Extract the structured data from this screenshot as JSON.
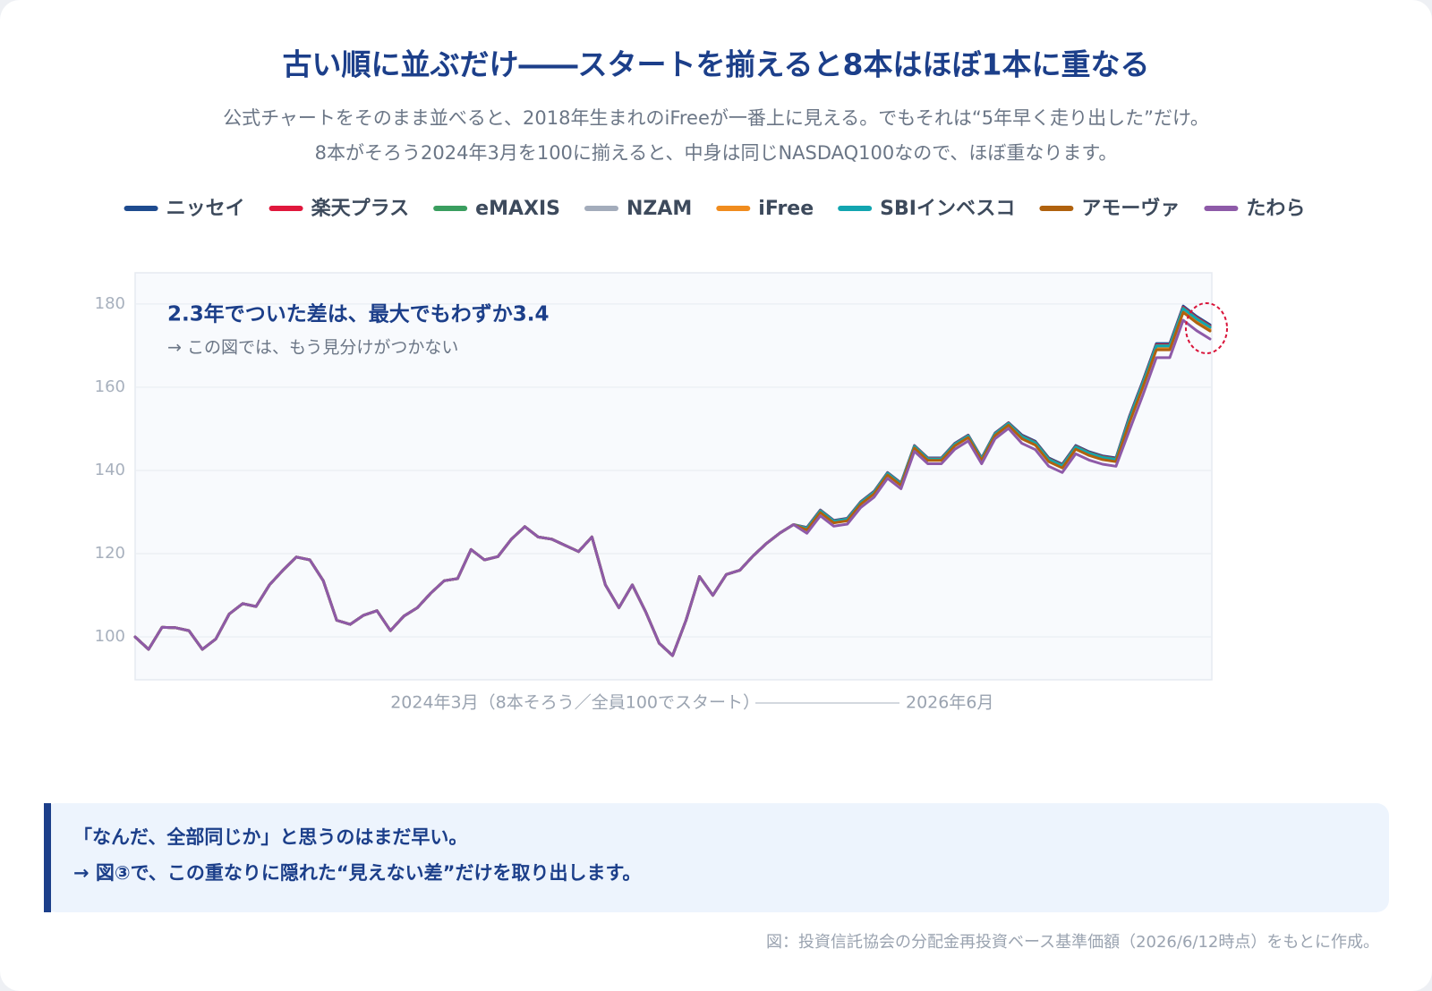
{
  "chart_data": {
    "type": "line",
    "title": "古い順に並ぶだけ――スタートを揃えると8本はほぼ1本に重なる",
    "subtitle": [
      "公式チャートをそのまま並べると、2018年生まれのiFreeが一番上に見える。でもそれは“5年早く走り出した”だけ。",
      "8本がそろう2024年3月を100に揃えると、中身は同じNASDAQ100なので、ほぼ重なります。"
    ],
    "annotation": {
      "title": "2.3年でついた差は、最大でもわずか3.4",
      "text": "→ この図では、もう見分けがつかない"
    },
    "x_start_label": "2024年3月（8本そろう／全員100でスタート）",
    "x_end_label": "2026年6月",
    "ylim": [
      89.7,
      187.5
    ],
    "yticks": [
      100,
      120,
      140,
      160,
      180
    ],
    "grid": true,
    "series": [
      {
        "name": "ニッセイ",
        "color": "#1e4b8f",
        "values": [
          100,
          97,
          102.3,
          102.2,
          101.5,
          97,
          99.5,
          105.5,
          108,
          107.3,
          112.5,
          116,
          119.2,
          118.5,
          113.5,
          104,
          103,
          105.2,
          106.3,
          101.5,
          105,
          107,
          110.5,
          113.5,
          114,
          121,
          118.5,
          119.3,
          123.5,
          126.5,
          124,
          123.5,
          122,
          120.5,
          124,
          112.5,
          107,
          112.5,
          106,
          98.5,
          95.5,
          104,
          114.5,
          110,
          115,
          116,
          119.5,
          122.5,
          125,
          127,
          126.3,
          130.5,
          128,
          128.5,
          132.5,
          135,
          139.5,
          137,
          146,
          143,
          143,
          146.5,
          148.5,
          143,
          149,
          151.5,
          148.5,
          147,
          143,
          141.5,
          146,
          144.5,
          143.5,
          143,
          153,
          161.5,
          170.5,
          170.5,
          179.5,
          177,
          175
        ]
      },
      {
        "name": "楽天プラス",
        "color": "#e0173c",
        "values": [
          100,
          97,
          102.3,
          102.2,
          101.5,
          97,
          99.5,
          105.5,
          108,
          107.3,
          112.5,
          116,
          119.2,
          118.5,
          113.5,
          104,
          103,
          105.2,
          106.3,
          101.5,
          105,
          107,
          110.5,
          113.5,
          114,
          121,
          118.5,
          119.3,
          123.5,
          126.5,
          124,
          123.5,
          122,
          120.5,
          124,
          112.5,
          107,
          112.5,
          106,
          98.5,
          95.5,
          104,
          114.5,
          110,
          115,
          116,
          119.5,
          122.5,
          125,
          127,
          126.2,
          130.4,
          127.9,
          128.4,
          132.4,
          134.9,
          139.4,
          136.9,
          145.9,
          142.9,
          142.9,
          146.4,
          148.4,
          142.9,
          148.9,
          151.4,
          148.3,
          146.8,
          142.8,
          141.3,
          145.8,
          144.3,
          143.3,
          142.8,
          152.7,
          161.2,
          170.2,
          170.2,
          179.2,
          176.7,
          174.7
        ]
      },
      {
        "name": "eMAXIS",
        "color": "#3a9e5f",
        "values": [
          100,
          97,
          102.3,
          102.2,
          101.5,
          97,
          99.5,
          105.5,
          108,
          107.3,
          112.5,
          116,
          119.2,
          118.5,
          113.5,
          104,
          103,
          105.2,
          106.3,
          101.5,
          105,
          107,
          110.5,
          113.5,
          114,
          121,
          118.5,
          119.3,
          123.5,
          126.5,
          124,
          123.5,
          122,
          120.5,
          124,
          112.5,
          107,
          112.5,
          106,
          98.5,
          95.5,
          104,
          114.5,
          110,
          115,
          116,
          119.5,
          122.5,
          125,
          127,
          126.1,
          130.3,
          127.8,
          128.3,
          132.3,
          134.8,
          139.3,
          136.8,
          145.8,
          142.8,
          142.8,
          146.3,
          148.3,
          142.8,
          148.8,
          151.3,
          148.2,
          146.7,
          142.7,
          141.2,
          145.7,
          144.2,
          143.2,
          142.7,
          152.5,
          161,
          170,
          170,
          179,
          176.5,
          174.5
        ]
      },
      {
        "name": "NZAM",
        "color": "#a3acbb",
        "values": [
          100,
          97,
          102.3,
          102.2,
          101.5,
          97,
          99.5,
          105.5,
          108,
          107.3,
          112.5,
          116,
          119.2,
          118.5,
          113.5,
          104,
          103,
          105.2,
          106.3,
          101.5,
          105,
          107,
          110.5,
          113.5,
          114,
          121,
          118.5,
          119.3,
          123.5,
          126.5,
          124,
          123.5,
          122,
          120.5,
          124,
          112.5,
          107,
          112.5,
          106,
          98.5,
          95.5,
          104,
          114.5,
          110,
          115,
          116,
          119.5,
          122.5,
          125,
          127,
          126,
          130.2,
          127.7,
          128.2,
          132.2,
          134.7,
          139.2,
          136.7,
          145.7,
          142.7,
          142.7,
          146.2,
          148.2,
          142.7,
          148.7,
          151.2,
          148,
          146.5,
          142.5,
          141,
          145.5,
          144,
          143,
          142.5,
          152.2,
          160.7,
          169.7,
          169.7,
          178.7,
          176.2,
          174.2
        ]
      },
      {
        "name": "iFree",
        "color": "#f08c1e",
        "values": [
          100,
          97,
          102.3,
          102.2,
          101.5,
          97,
          99.5,
          105.5,
          108,
          107.3,
          112.5,
          116,
          119.2,
          118.5,
          113.5,
          104,
          103,
          105.2,
          106.3,
          101.5,
          105,
          107,
          110.5,
          113.5,
          114,
          121,
          118.5,
          119.3,
          123.5,
          126.5,
          124,
          123.5,
          122,
          120.5,
          124,
          112.5,
          107,
          112.5,
          106,
          98.5,
          95.5,
          104,
          114.5,
          110,
          115,
          116,
          119.5,
          122.5,
          125,
          127,
          125.8,
          130,
          127.5,
          128,
          132,
          134.5,
          139,
          136.5,
          145.5,
          142.5,
          142.5,
          146,
          148,
          142.5,
          148.5,
          151,
          147.8,
          146.3,
          142.3,
          140.8,
          145.3,
          143.8,
          142.8,
          142.3,
          151.8,
          160.3,
          169.3,
          169.3,
          178.3,
          175.8,
          173.8
        ]
      },
      {
        "name": "SBIインベスコ",
        "color": "#12a5b0",
        "values": [
          100,
          97,
          102.3,
          102.2,
          101.5,
          97,
          99.5,
          105.5,
          108,
          107.3,
          112.5,
          116,
          119.2,
          118.5,
          113.5,
          104,
          103,
          105.2,
          106.3,
          101.5,
          105,
          107,
          110.5,
          113.5,
          114,
          121,
          118.5,
          119.3,
          123.5,
          126.5,
          124,
          123.5,
          122,
          120.5,
          124,
          112.5,
          107,
          112.5,
          106,
          98.5,
          95.5,
          104,
          114.5,
          110,
          115,
          116,
          119.5,
          122.5,
          125,
          127,
          126.1,
          130.3,
          127.8,
          128.3,
          132.3,
          134.8,
          139.3,
          136.8,
          145.8,
          142.8,
          142.8,
          146.3,
          148.3,
          142.8,
          148.8,
          151.3,
          148.1,
          146.6,
          142.6,
          141.1,
          145.6,
          144.1,
          143.1,
          142.6,
          152.4,
          160.9,
          169.9,
          169.9,
          178.9,
          176.4,
          174.4
        ]
      },
      {
        "name": "アモーヴァ",
        "color": "#b0620e",
        "values": [
          100,
          97,
          102.3,
          102.2,
          101.5,
          97,
          99.5,
          105.5,
          108,
          107.3,
          112.5,
          116,
          119.2,
          118.5,
          113.5,
          104,
          103,
          105.2,
          106.3,
          101.5,
          105,
          107,
          110.5,
          113.5,
          114,
          121,
          118.5,
          119.3,
          123.5,
          126.5,
          124,
          123.5,
          122,
          120.5,
          124,
          112.5,
          107,
          112.5,
          106,
          98.5,
          95.5,
          104,
          114.5,
          110,
          115,
          116,
          119.5,
          122.5,
          125,
          127,
          125.7,
          129.9,
          127.4,
          127.9,
          131.9,
          134.4,
          138.9,
          136.4,
          145.4,
          142.4,
          142.4,
          145.9,
          147.9,
          142.4,
          148.4,
          150.9,
          147.6,
          146.1,
          142.1,
          140.6,
          145.1,
          143.6,
          142.6,
          142.1,
          151.5,
          160,
          169,
          169,
          178,
          175.5,
          173.5
        ]
      },
      {
        "name": "たわら",
        "color": "#8e5aa8",
        "values": [
          100,
          97,
          102.3,
          102.2,
          101.5,
          97,
          99.5,
          105.5,
          108,
          107.3,
          112.5,
          116,
          119.2,
          118.5,
          113.5,
          104,
          103,
          105.2,
          106.3,
          101.5,
          105,
          107,
          110.5,
          113.5,
          114,
          121,
          118.5,
          119.3,
          123.5,
          126.5,
          124,
          123.5,
          122,
          120.5,
          124,
          112.5,
          107,
          112.5,
          106,
          98.5,
          95.5,
          104,
          114.5,
          110,
          115,
          116,
          119.5,
          122.5,
          125,
          127,
          124.9,
          129.1,
          126.6,
          127.1,
          131.1,
          133.6,
          138.1,
          135.6,
          144.6,
          141.6,
          141.6,
          145.1,
          147.1,
          141.6,
          147.6,
          150.1,
          146.5,
          145,
          141,
          139.5,
          144,
          142.5,
          141.5,
          141,
          149.6,
          158.1,
          167.1,
          167.1,
          176.1,
          173.6,
          171.6
        ]
      }
    ]
  },
  "callout": [
    "「なんだ、全部同じか」と思うのはまだ早い。",
    "→ 図③で、この重なりに隠れた“見えない差”だけを取り出します。"
  ],
  "source": "図：投資信託協会の分配金再投資ベース基準価額（2026/6/12時点）をもとに作成。"
}
